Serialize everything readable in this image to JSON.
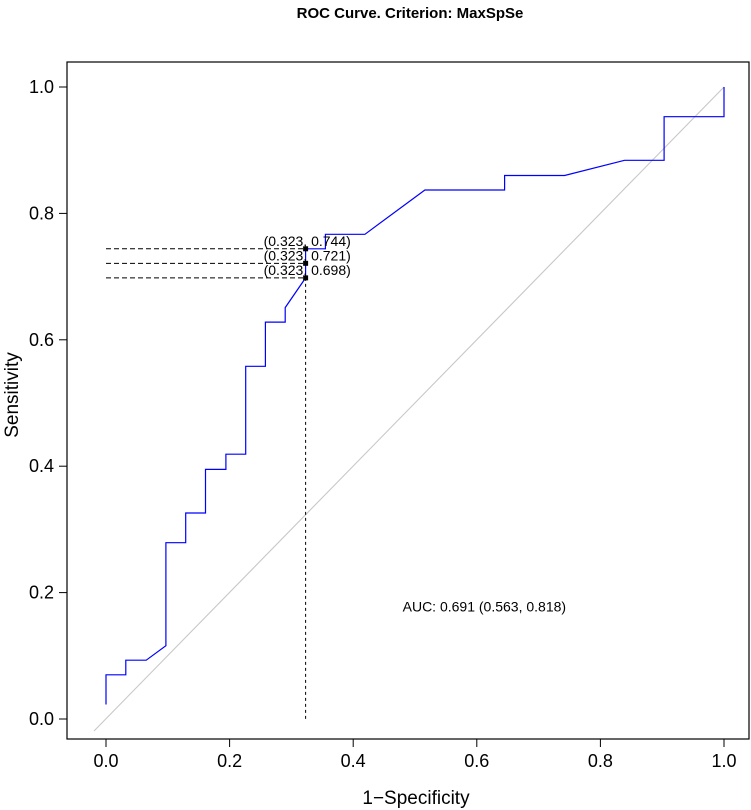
{
  "chart_data": {
    "type": "line",
    "title": "ROC Curve. Criterion: MaxSpSe",
    "xlabel": "1−Specificity",
    "ylabel": "Sensitivity",
    "xlim": [
      0.0,
      1.0
    ],
    "ylim": [
      0.0,
      1.0
    ],
    "xticks": [
      "0.0",
      "0.2",
      "0.4",
      "0.6",
      "0.8",
      "1.0"
    ],
    "yticks": [
      "0.0",
      "0.2",
      "0.4",
      "0.6",
      "0.8",
      "1.0"
    ],
    "grid": false,
    "series": [
      {
        "color": "#0000ff",
        "x": [
          0.0,
          0.0,
          0.032,
          0.032,
          0.065,
          0.097,
          0.097,
          0.129,
          0.129,
          0.161,
          0.161,
          0.194,
          0.194,
          0.226,
          0.226,
          0.258,
          0.258,
          0.29,
          0.29,
          0.323,
          0.323,
          0.355,
          0.355,
          0.419,
          0.516,
          0.645,
          0.645,
          0.742,
          0.839,
          0.903,
          0.903,
          1.0,
          1.0
        ],
        "y": [
          0.023,
          0.07,
          0.07,
          0.093,
          0.093,
          0.116,
          0.279,
          0.279,
          0.326,
          0.326,
          0.395,
          0.395,
          0.419,
          0.419,
          0.558,
          0.558,
          0.628,
          0.628,
          0.651,
          0.698,
          0.744,
          0.744,
          0.767,
          0.767,
          0.837,
          0.837,
          0.86,
          0.86,
          0.884,
          0.884,
          0.953,
          0.953,
          1.0
        ]
      }
    ],
    "reference_line": {
      "x": [
        0.0,
        1.0
      ],
      "y": [
        0.0,
        1.0
      ],
      "color": "#c8c8c8"
    },
    "thresholds": [
      {
        "x": 0.323,
        "y": 0.744,
        "label": "(0.323, 0.744)"
      },
      {
        "x": 0.323,
        "y": 0.721,
        "label": "(0.323, 0.721)"
      },
      {
        "x": 0.323,
        "y": 0.698,
        "label": "(0.323, 0.698)"
      }
    ],
    "auc_label": "AUC: 0.691 (0.563, 0.818)",
    "auc_label_pos": {
      "x": 0.48,
      "y": 0.17
    }
  }
}
